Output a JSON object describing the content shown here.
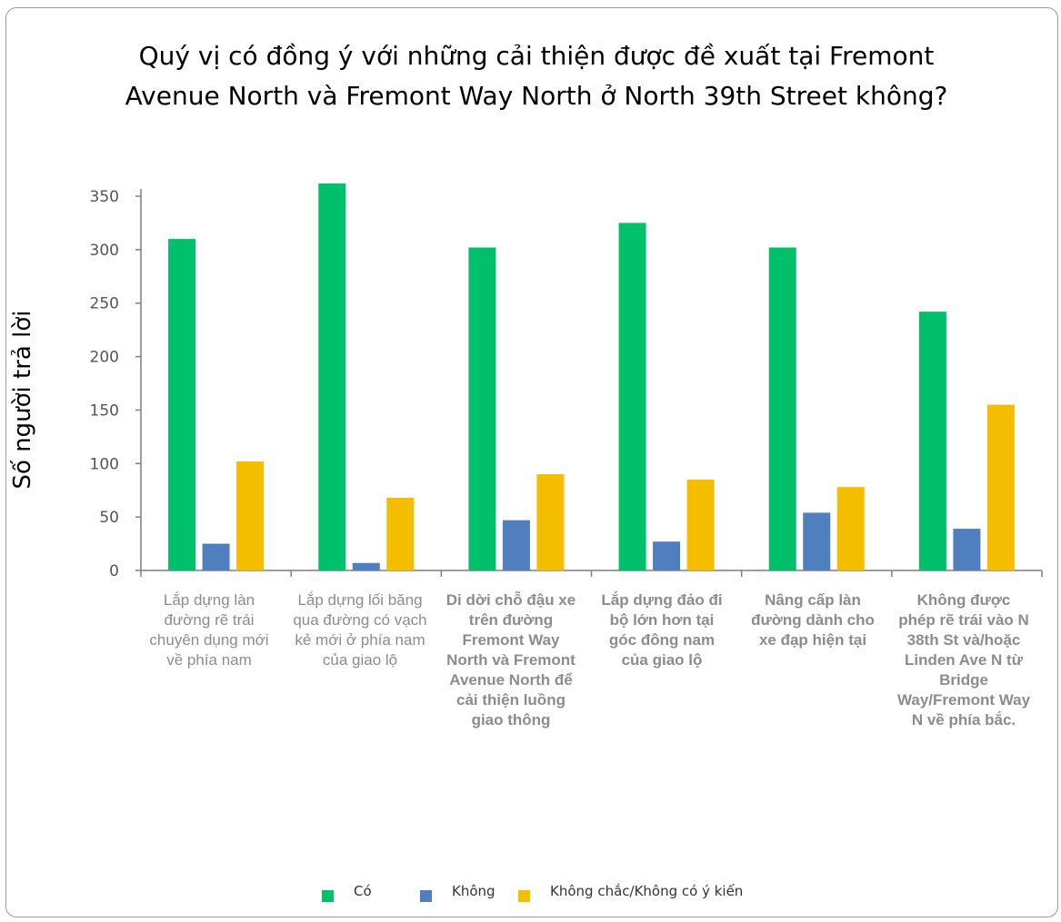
{
  "chart_data": {
    "type": "bar",
    "title": "Quý vị có đồng ý với những cải thiện được đề xuất tại Fremont Avenue North và Fremont Way North ở North 39th Street không?",
    "ylabel": "Số người trả lời",
    "xlabel": "",
    "ylim": [
      0,
      360
    ],
    "yticks": [
      "0",
      "50",
      "100",
      "150",
      "200",
      "250",
      "300",
      "350"
    ],
    "categories": [
      "Lắp dựng làn đường rẽ trái chuyên dụng mới về phía nam",
      "Lắp dựng lối băng qua đường có vạch kẻ mới ở phía nam của giao lộ",
      "Di dời chỗ đậu xe trên đường Fremont Way North và Fremont Avenue North để cải thiện luồng giao thông",
      "Lắp dựng đảo đi bộ lớn hơn tại góc đông nam của giao lộ",
      "Nâng cấp làn đường dành cho xe đạp hiện tại",
      "Không được phép rẽ trái vào N 38th St và/hoặc Linden Ave N từ Bridge Way/Fremont Way N về phía bắc."
    ],
    "series": [
      {
        "name": "Có",
        "color": "#00c06b",
        "values": [
          310,
          362,
          302,
          325,
          302,
          242
        ]
      },
      {
        "name": "Không",
        "color": "#4f7fbe",
        "values": [
          25,
          7,
          47,
          27,
          54,
          39
        ]
      },
      {
        "name": "Không chắc/Không có ý kiến",
        "color": "#f5bd00",
        "values": [
          102,
          68,
          90,
          85,
          78,
          155
        ]
      }
    ],
    "grid": false,
    "legend": "bottom"
  }
}
